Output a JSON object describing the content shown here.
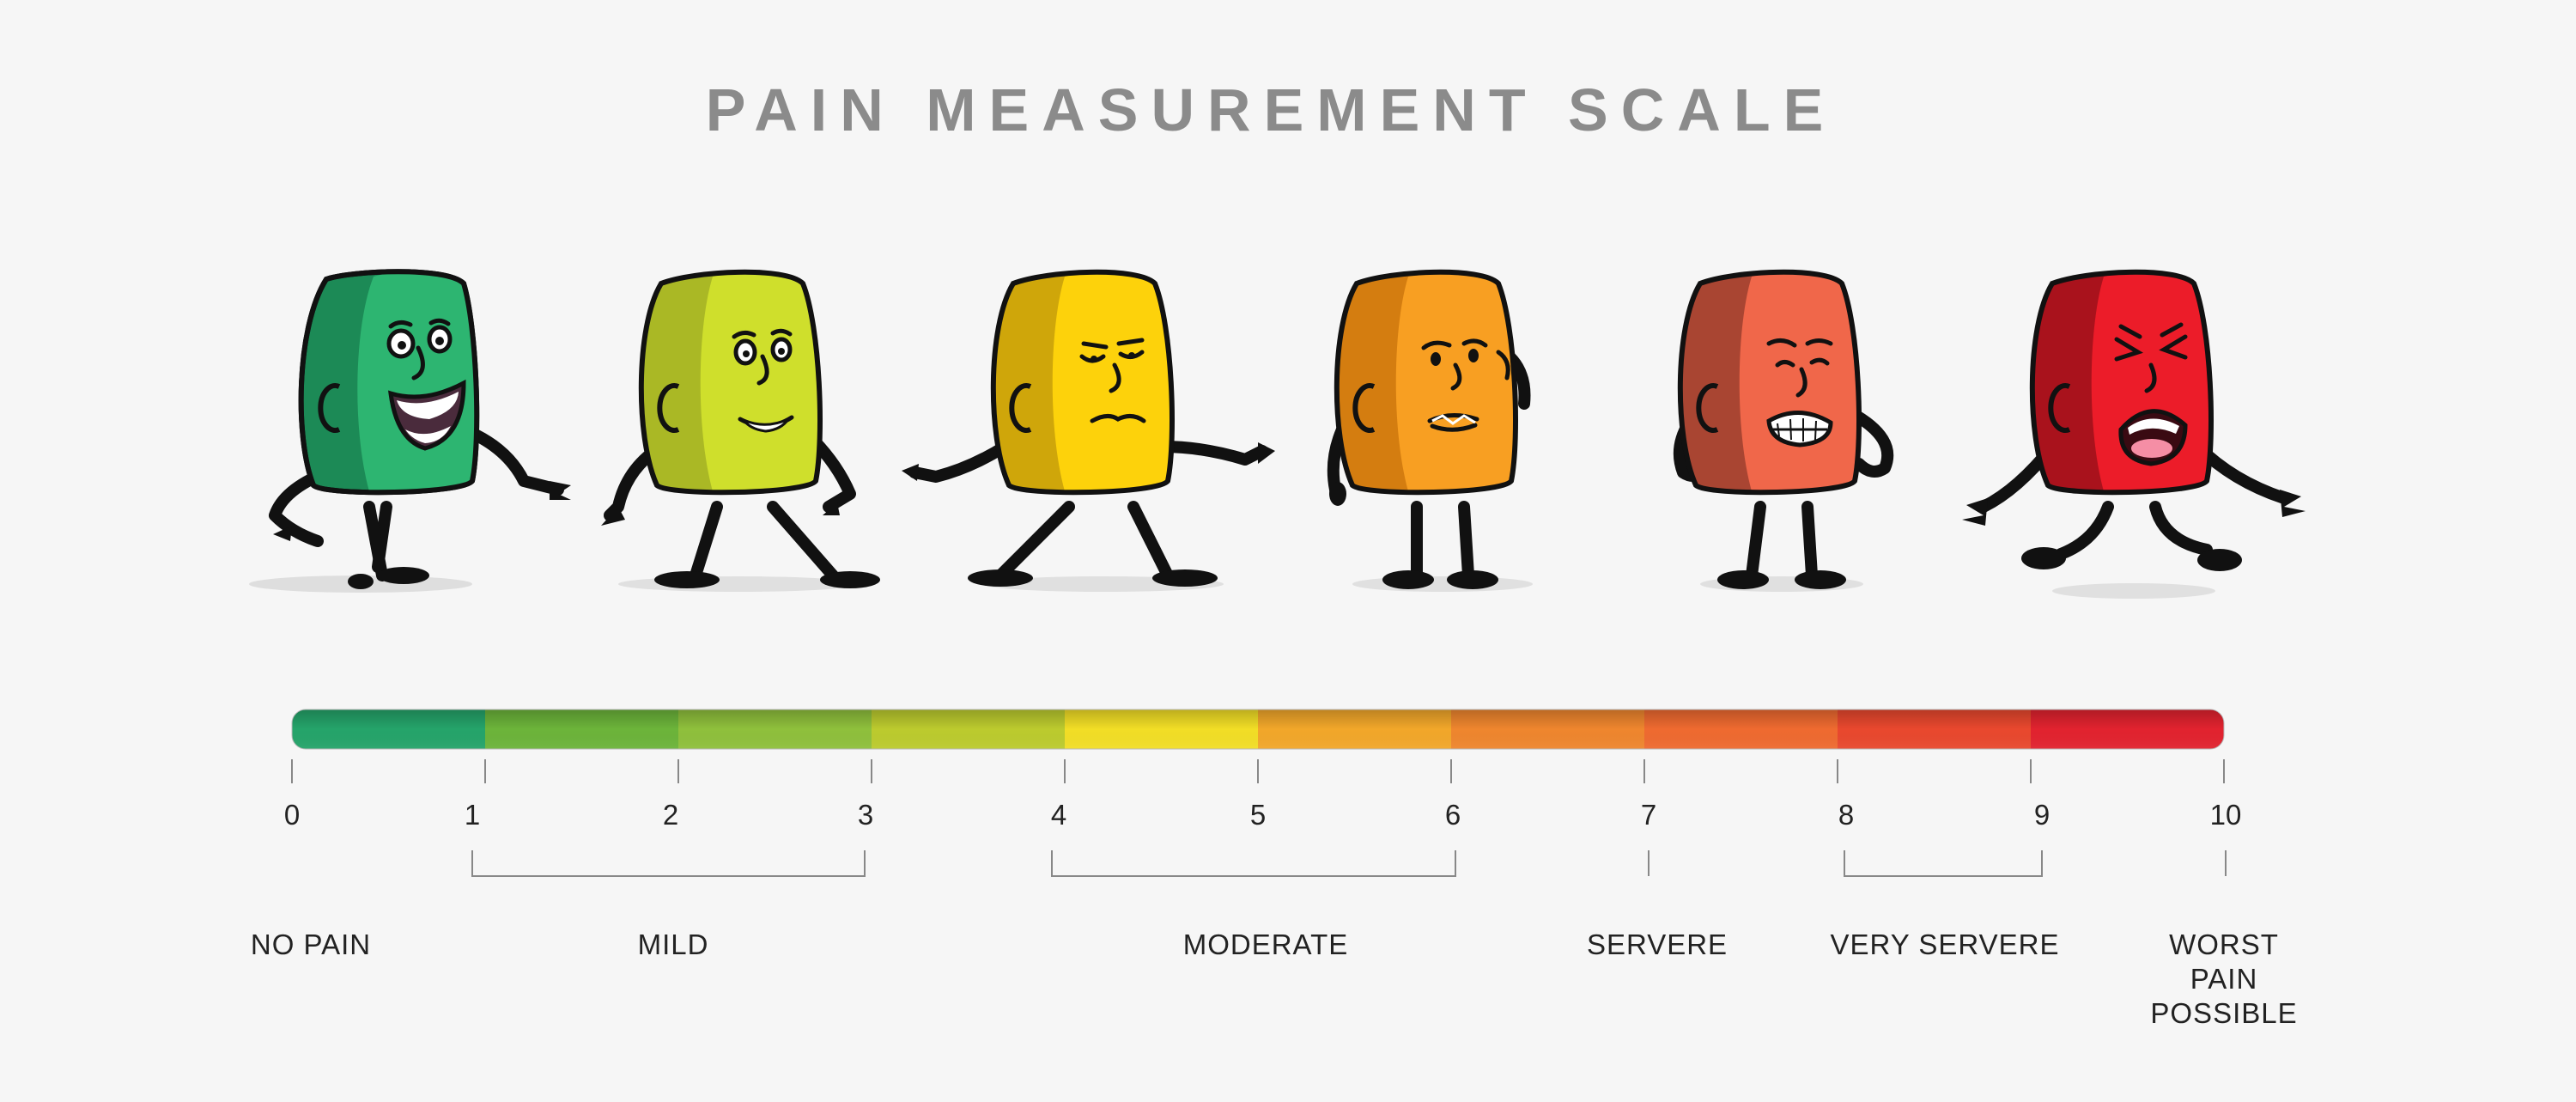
{
  "title": "PAIN MEASUREMENT SCALE",
  "scale": {
    "ticks": [
      "0",
      "1",
      "2",
      "3",
      "4",
      "5",
      "6",
      "7",
      "8",
      "9",
      "10"
    ],
    "segment_colors": [
      "#25a46a",
      "#6cb43a",
      "#8fc03c",
      "#bccb2e",
      "#f2de26",
      "#f2a72a",
      "#ef862e",
      "#ef6a30",
      "#e9482e",
      "#e2232f"
    ]
  },
  "categories": [
    {
      "label": "NO PAIN"
    },
    {
      "label": "MILD"
    },
    {
      "label": "MODERATE"
    },
    {
      "label": "SERVERE"
    },
    {
      "label": "VERY SERVERE"
    },
    {
      "label": "WORST PAIN POSSIBLE"
    }
  ],
  "characters": [
    {
      "expression": "laughing",
      "color": "#2db571",
      "shade": "#1c8a56"
    },
    {
      "expression": "smiling",
      "color": "#cfdf2c",
      "shade": "#aab825"
    },
    {
      "expression": "neutral",
      "color": "#fdd20b",
      "shade": "#cfa60a"
    },
    {
      "expression": "worried",
      "color": "#f89f22",
      "shade": "#d47d10"
    },
    {
      "expression": "distressed",
      "color": "#f0674a",
      "shade": "#a94532"
    },
    {
      "expression": "crying",
      "color": "#ec1c29",
      "shade": "#a9121c"
    }
  ]
}
